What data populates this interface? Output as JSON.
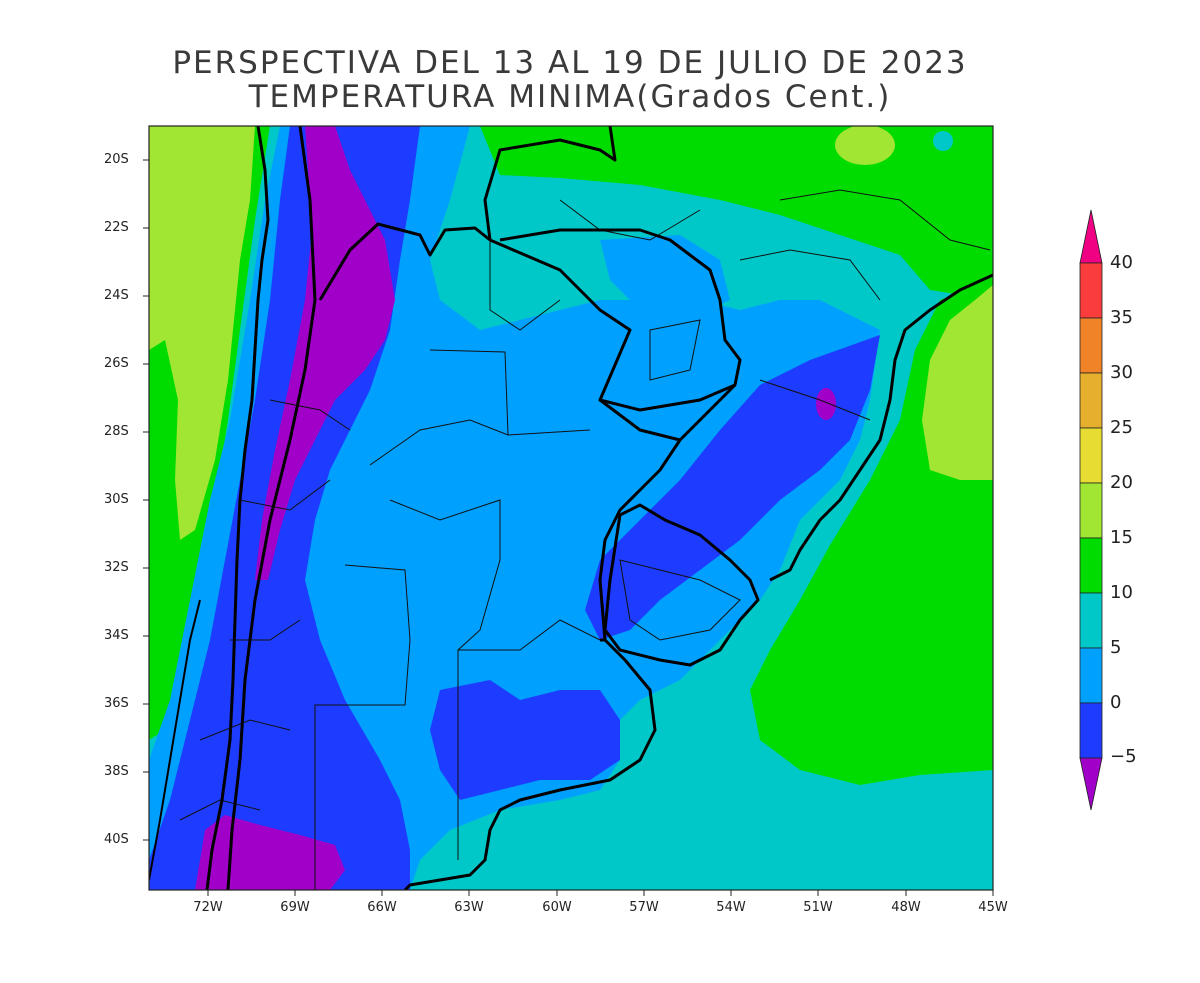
{
  "title": {
    "line1": "PERSPECTIVA DEL 13 AL 19 DE JULIO DE 2023",
    "line2": "TEMPERATURA MINIMA(Grados Cent.)"
  },
  "lat_labels": [
    "20S",
    "22S",
    "24S",
    "26S",
    "28S",
    "30S",
    "32S",
    "34S",
    "36S",
    "38S",
    "40S"
  ],
  "lon_labels": [
    "72W",
    "69W",
    "66W",
    "63W",
    "60W",
    "57W",
    "54W",
    "51W",
    "48W",
    "45W"
  ],
  "colorbar": {
    "levels": [
      "40",
      "35",
      "30",
      "25",
      "20",
      "15",
      "10",
      "5",
      "0",
      "−5"
    ],
    "colors": {
      "below_minus5": "#a000c8",
      "minus5_0": "#1e3cff",
      "0_5": "#00a0ff",
      "5_10": "#00c8c8",
      "10_15": "#00dc00",
      "15_20": "#a0e632",
      "20_25": "#e6dc32",
      "25_30": "#e6af2d",
      "30_35": "#f08228",
      "35_40": "#fa3c3c",
      "above_40": "#f00082"
    }
  }
}
